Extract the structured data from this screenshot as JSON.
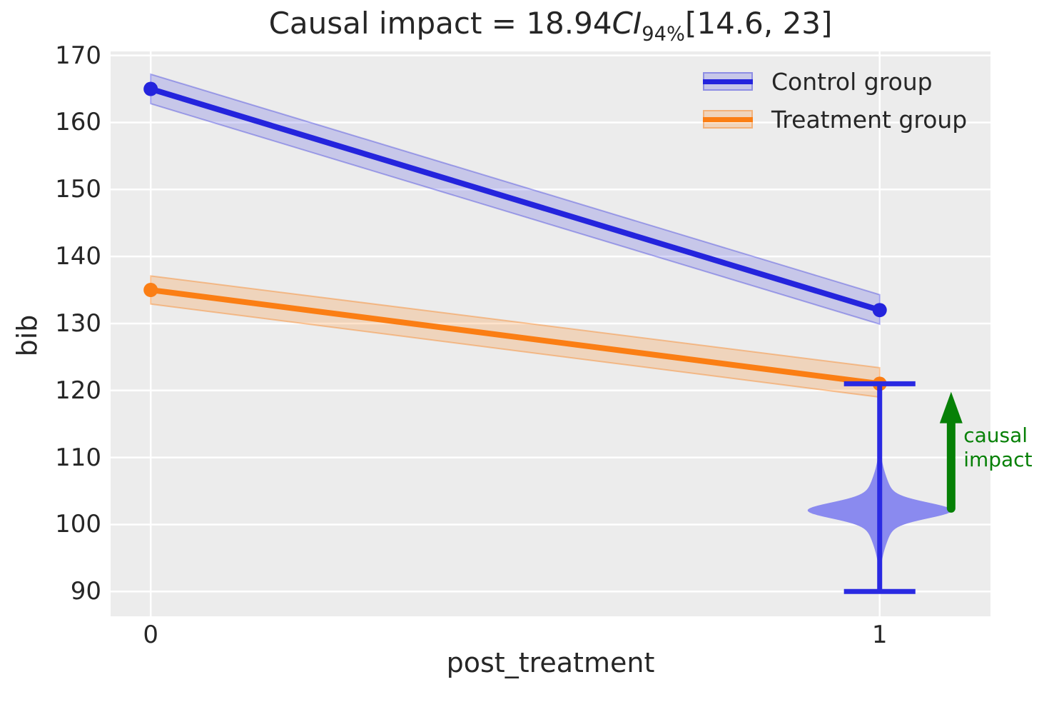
{
  "chart_data": {
    "type": "line",
    "title": "Causal impact = 18.94 CI 94% [14.6, 23]",
    "title_parts": {
      "prefix": "Causal impact = 18.94",
      "ci_symbol": "CI",
      "ci_level": "94%",
      "interval": "[14.6, 23]"
    },
    "causal_impact": {
      "estimate": 18.94,
      "ci_level": "94%",
      "ci_low": 14.6,
      "ci_high": 23
    },
    "xlabel": "post_treatment",
    "ylabel": "bib",
    "xlim": [
      -0.055,
      1.152
    ],
    "ylim": [
      86.3,
      170.6
    ],
    "x_ticks": [
      "0",
      "1"
    ],
    "x_tick_values": [
      0,
      1
    ],
    "y_ticks": [
      "90",
      "100",
      "110",
      "120",
      "130",
      "140",
      "150",
      "160",
      "170"
    ],
    "y_tick_values": [
      90,
      100,
      110,
      120,
      130,
      140,
      150,
      160,
      170
    ],
    "grid": true,
    "background": "#ececec",
    "grid_color": "#ffffff",
    "legend": {
      "position": "upper right",
      "entries": [
        {
          "label": "Control group",
          "color": "#2424dd",
          "band_fill": "rgba(36,36,221,0.18)",
          "band_edge": "rgba(36,36,221,0.35)"
        },
        {
          "label": "Treatment group",
          "color": "#fb7e14",
          "band_fill": "rgba(251,126,20,0.22)",
          "band_edge": "rgba(251,126,20,0.4)"
        }
      ]
    },
    "series": [
      {
        "name": "Control group",
        "x": [
          0,
          1
        ],
        "y": [
          165,
          132
        ],
        "band_low": [
          162.8,
          129.9
        ],
        "band_high": [
          167.2,
          134.3
        ],
        "color": "#2424dd",
        "band_fill": "rgba(36,36,221,0.18)",
        "band_edge": "rgba(36,36,221,0.35)"
      },
      {
        "name": "Treatment group",
        "x": [
          0,
          1
        ],
        "y": [
          135,
          121
        ],
        "band_low": [
          132.9,
          119.0
        ],
        "band_high": [
          137.1,
          123.4
        ],
        "color": "#fb7e14",
        "band_fill": "rgba(251,126,20,0.22)",
        "band_edge": "rgba(251,126,20,0.4)"
      }
    ],
    "violin": {
      "x": 1,
      "center": 102.1,
      "whisker_low": 90,
      "whisker_high": 121,
      "max_halfwidth": 0.099,
      "cap_halfwidth": 0.049,
      "fill": "#8a8aef",
      "line_color": "#2a2ae2",
      "kde": {
        "w1": 0.78,
        "s1": 1.15,
        "w2": 0.22,
        "s2": 3.8
      }
    },
    "annotation": {
      "label_line1": "causal",
      "label_line2": "impact",
      "color": "#068006",
      "arrow_x": 1.098,
      "arrow_from_y": 102.4,
      "arrow_to_y": 119.8,
      "label_x": 1.115,
      "label_y": 115.1
    }
  }
}
